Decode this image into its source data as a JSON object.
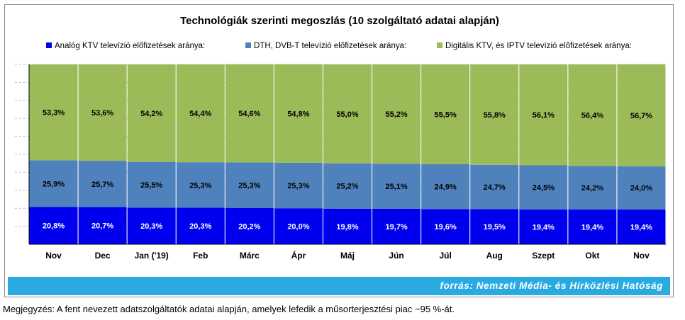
{
  "chart_data": {
    "type": "bar",
    "stacked": true,
    "normalized_percent": true,
    "title": "Technológiák szerinti megoszlás (10 szolgáltató adatai alapján)",
    "categories": [
      "Nov",
      "Dec",
      "Jan ('19)",
      "Feb",
      "Márc",
      "Ápr",
      "Máj",
      "Jún",
      "Júl",
      "Aug",
      "Szept",
      "Okt",
      "Nov"
    ],
    "series": [
      {
        "name": "Analóg KTV televízió előfizetések aránya:",
        "color": "#0000ee",
        "values": [
          20.8,
          20.7,
          20.3,
          20.3,
          20.2,
          20.0,
          19.8,
          19.7,
          19.6,
          19.5,
          19.4,
          19.4,
          19.4
        ],
        "labels": [
          "20,8%",
          "20,7%",
          "20,3%",
          "20,3%",
          "20,2%",
          "20,0%",
          "19,8%",
          "19,7%",
          "19,6%",
          "19,5%",
          "19,4%",
          "19,4%",
          "19,4%"
        ]
      },
      {
        "name": "DTH, DVB-T televízió előfizetések aránya:",
        "color": "#4f81bd",
        "values": [
          25.9,
          25.7,
          25.5,
          25.3,
          25.3,
          25.3,
          25.2,
          25.1,
          24.9,
          24.7,
          24.5,
          24.2,
          24.0
        ],
        "labels": [
          "25,9%",
          "25,7%",
          "25,5%",
          "25,3%",
          "25,3%",
          "25,3%",
          "25,2%",
          "25,1%",
          "24,9%",
          "24,7%",
          "24,5%",
          "24,2%",
          "24,0%"
        ]
      },
      {
        "name": "Digitális KTV, és IPTV televízió előfizetések aránya:",
        "color": "#9bbb59",
        "values": [
          53.3,
          53.6,
          54.2,
          54.4,
          54.6,
          54.8,
          55.0,
          55.2,
          55.5,
          55.8,
          56.1,
          56.4,
          56.7
        ],
        "labels": [
          "53,3%",
          "53,6%",
          "54,2%",
          "54,4%",
          "54,6%",
          "54,8%",
          "55,0%",
          "55,2%",
          "55,5%",
          "55,8%",
          "56,1%",
          "56,4%",
          "56,7%"
        ]
      }
    ],
    "ylim": [
      0,
      100
    ],
    "grid": true,
    "legend": "top"
  },
  "footer": {
    "source": "forrás: Nemzeti Média- és Hírközlési Hatóság",
    "note": "Megjegyzés: A fent nevezett adatszolgáltatók adatai alapján, amelyek lefedik a műsorterjesztési piac ~95 %-át."
  }
}
